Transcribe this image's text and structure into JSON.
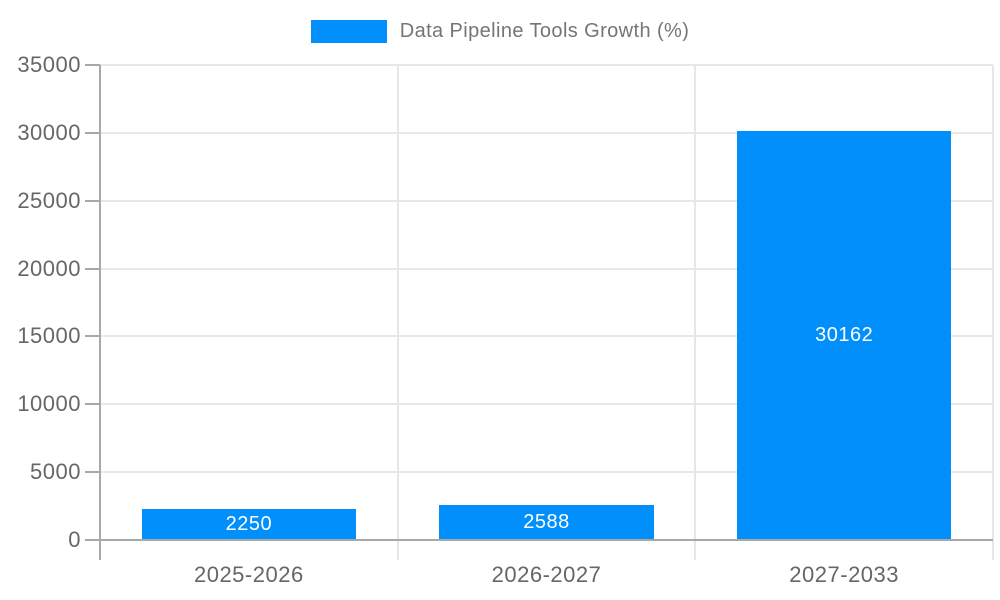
{
  "legend": {
    "label": "Data Pipeline Tools Growth (%)",
    "position": "top"
  },
  "colors": {
    "bar": "#008FFB",
    "grid": "#E7E7E7",
    "axis": "#A8A8A8",
    "tick_text": "#666666",
    "legend_text": "#757575",
    "bar_label": "#FFFFFF",
    "background": "#FFFFFF"
  },
  "chart_data": {
    "type": "bar",
    "series_label": "Data Pipeline Tools Growth (%)",
    "categories": [
      "2025-2026",
      "2026-2027",
      "2027-2033"
    ],
    "values": [
      2250,
      2588,
      30162
    ],
    "value_labels": [
      "2250",
      "2588",
      "30162"
    ],
    "title": "",
    "xlabel": "",
    "ylabel": "",
    "ylim": [
      0,
      35000
    ],
    "ytick_step": 5000,
    "yticks": [
      0,
      5000,
      10000,
      15000,
      20000,
      25000,
      30000,
      35000
    ],
    "grid": true,
    "legend_position": "top",
    "bar_label_position": "inside-center"
  }
}
